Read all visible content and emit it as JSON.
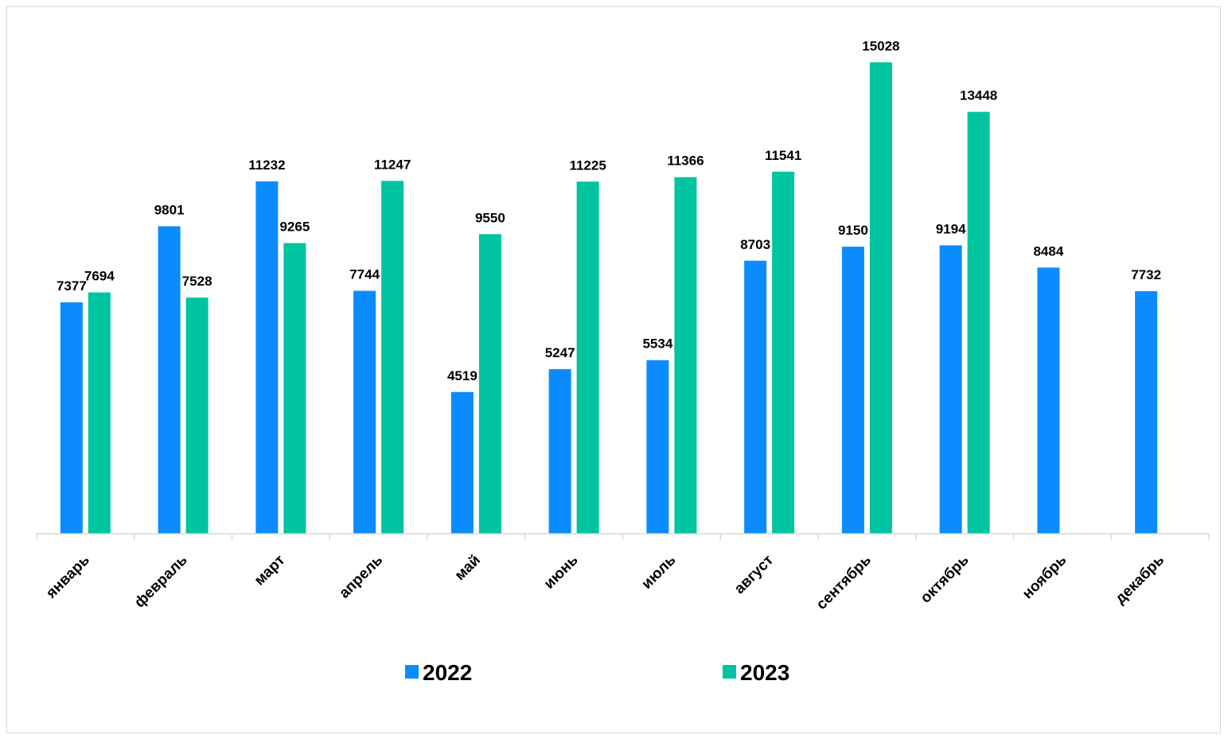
{
  "chart_data": {
    "type": "bar",
    "title": "",
    "xlabel": "",
    "ylabel": "",
    "ylim": [
      0,
      16000
    ],
    "grid": false,
    "legend_position": "bottom",
    "categories": [
      "январь",
      "февраль",
      "март",
      "апрель",
      "май",
      "июнь",
      "июль",
      "август",
      "сентябрь",
      "октябрь",
      "ноябрь",
      "декабрь"
    ],
    "series": [
      {
        "name": "2022",
        "color": "#0a8cff",
        "values": [
          7377,
          9801,
          11232,
          7744,
          4519,
          5247,
          5534,
          8703,
          9150,
          9194,
          8484,
          7732
        ]
      },
      {
        "name": "2023",
        "color": "#00c4a0",
        "values": [
          7694,
          7528,
          9265,
          11247,
          9550,
          11225,
          11366,
          11541,
          15028,
          13448,
          null,
          null
        ]
      }
    ]
  }
}
